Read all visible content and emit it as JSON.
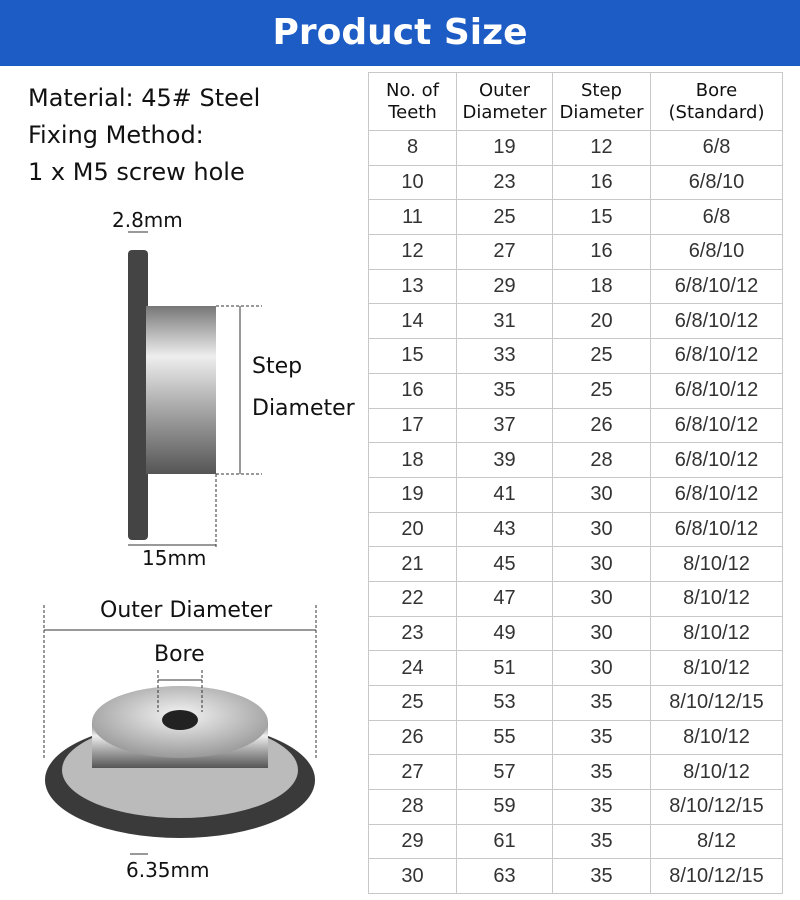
{
  "title": "Product Size",
  "info": {
    "material": "Material: 45# Steel",
    "fixing": "Fixing Method:",
    "screw": "1 x M5 screw hole"
  },
  "labels": {
    "thickness": "2.8mm",
    "step1": "Step",
    "step2": "Diameter",
    "hub_length": "15mm",
    "outer": "Outer Diameter",
    "bore": "Bore",
    "pitch": "6.35mm"
  },
  "table": {
    "headers": [
      [
        "No. of",
        "Teeth"
      ],
      [
        "Outer",
        "Diameter"
      ],
      [
        "Step",
        "Diameter"
      ],
      [
        "Bore",
        "(Standard)"
      ]
    ],
    "rows": [
      [
        "8",
        "19",
        "12",
        "6/8"
      ],
      [
        "10",
        "23",
        "16",
        "6/8/10"
      ],
      [
        "11",
        "25",
        "15",
        "6/8"
      ],
      [
        "12",
        "27",
        "16",
        "6/8/10"
      ],
      [
        "13",
        "29",
        "18",
        "6/8/10/12"
      ],
      [
        "14",
        "31",
        "20",
        "6/8/10/12"
      ],
      [
        "15",
        "33",
        "25",
        "6/8/10/12"
      ],
      [
        "16",
        "35",
        "25",
        "6/8/10/12"
      ],
      [
        "17",
        "37",
        "26",
        "6/8/10/12"
      ],
      [
        "18",
        "39",
        "28",
        "6/8/10/12"
      ],
      [
        "19",
        "41",
        "30",
        "6/8/10/12"
      ],
      [
        "20",
        "43",
        "30",
        "6/8/10/12"
      ],
      [
        "21",
        "45",
        "30",
        "8/10/12"
      ],
      [
        "22",
        "47",
        "30",
        "8/10/12"
      ],
      [
        "23",
        "49",
        "30",
        "8/10/12"
      ],
      [
        "24",
        "51",
        "30",
        "8/10/12"
      ],
      [
        "25",
        "53",
        "35",
        "8/10/12/15"
      ],
      [
        "26",
        "55",
        "35",
        "8/10/12"
      ],
      [
        "27",
        "57",
        "35",
        "8/10/12"
      ],
      [
        "28",
        "59",
        "35",
        "8/10/12/15"
      ],
      [
        "29",
        "61",
        "35",
        "8/12"
      ],
      [
        "30",
        "63",
        "35",
        "8/10/12/15"
      ]
    ]
  },
  "colors": {
    "banner": "#1d5cc4",
    "grid": "#c8c8c8"
  }
}
